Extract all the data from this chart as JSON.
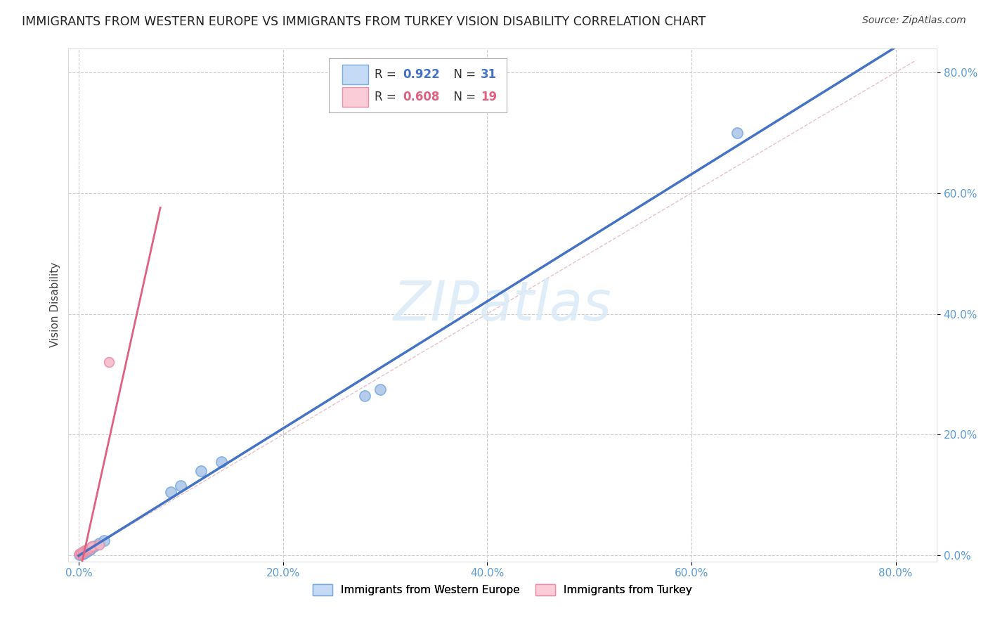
{
  "title": "IMMIGRANTS FROM WESTERN EUROPE VS IMMIGRANTS FROM TURKEY VISION DISABILITY CORRELATION CHART",
  "source": "Source: ZipAtlas.com",
  "ylabel": "Vision Disability",
  "blue_label": "Immigrants from Western Europe",
  "pink_label": "Immigrants from Turkey",
  "legend1_r": "0.922",
  "legend1_n": "31",
  "legend2_r": "0.608",
  "legend2_n": "19",
  "blue_line_color": "#4472c4",
  "blue_dot_fill": "#aac4e8",
  "blue_dot_edge": "#7aabdc",
  "pink_line_color": "#e06080",
  "pink_dot_fill": "#f5b8c8",
  "pink_dot_edge": "#e890a8",
  "blue_legend_fill": "#c5daf5",
  "blue_legend_edge": "#7aabdc",
  "pink_legend_fill": "#f9ccd8",
  "pink_legend_edge": "#e890a8",
  "diag_color": "#e8c0c8",
  "grid_color": "#cccccc",
  "tick_color": "#5b9bd5",
  "background_color": "#ffffff",
  "title_fontsize": 12.5,
  "source_fontsize": 10,
  "axis_label_fontsize": 11,
  "tick_fontsize": 11,
  "legend_fontsize": 12,
  "watermark_text": "ZIPatlas",
  "watermark_color": "#daeaf8",
  "blue_x": [
    0.001,
    0.002,
    0.002,
    0.003,
    0.003,
    0.004,
    0.004,
    0.005,
    0.005,
    0.006,
    0.006,
    0.007,
    0.007,
    0.008,
    0.009,
    0.009,
    0.01,
    0.01,
    0.011,
    0.012,
    0.013,
    0.015,
    0.02,
    0.025,
    0.09,
    0.1,
    0.12,
    0.14,
    0.28,
    0.295,
    0.645
  ],
  "blue_y": [
    0.001,
    0.002,
    0.003,
    0.002,
    0.004,
    0.003,
    0.005,
    0.004,
    0.006,
    0.005,
    0.007,
    0.006,
    0.008,
    0.007,
    0.008,
    0.01,
    0.009,
    0.011,
    0.01,
    0.012,
    0.014,
    0.015,
    0.02,
    0.025,
    0.105,
    0.115,
    0.14,
    0.155,
    0.265,
    0.275,
    0.7
  ],
  "pink_x": [
    0.001,
    0.001,
    0.002,
    0.002,
    0.003,
    0.003,
    0.004,
    0.004,
    0.005,
    0.006,
    0.007,
    0.008,
    0.009,
    0.01,
    0.011,
    0.012,
    0.013,
    0.02,
    0.03
  ],
  "pink_y": [
    0.002,
    0.003,
    0.003,
    0.004,
    0.004,
    0.005,
    0.005,
    0.006,
    0.007,
    0.008,
    0.008,
    0.009,
    0.01,
    0.011,
    0.012,
    0.013,
    0.015,
    0.018,
    0.32
  ],
  "xlim": [
    -0.01,
    0.84
  ],
  "ylim": [
    -0.01,
    0.84
  ],
  "xticks": [
    0.0,
    0.2,
    0.4,
    0.6,
    0.8
  ],
  "yticks": [
    0.0,
    0.2,
    0.4,
    0.6,
    0.8
  ],
  "xticklabels": [
    "0.0%",
    "20.0%",
    "40.0%",
    "60.0%",
    "80.0%"
  ],
  "yticklabels": [
    "0.0%",
    "20.0%",
    "40.0%",
    "60.0%",
    "80.0%"
  ]
}
